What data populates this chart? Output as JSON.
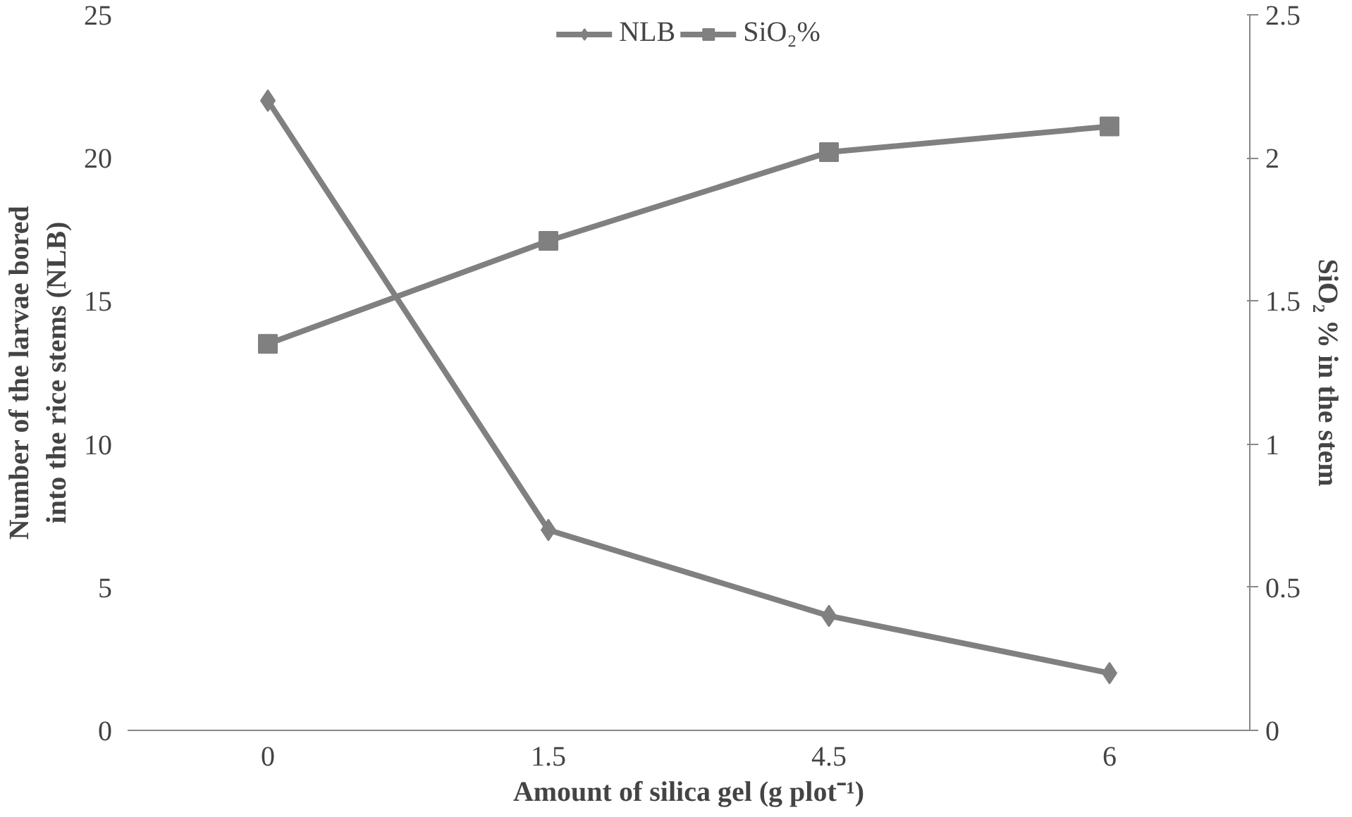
{
  "chart_data": {
    "type": "line",
    "categories": [
      "0",
      "1.5",
      "4.5",
      "6"
    ],
    "xlabel": "Amount of silica gel (g plot⁻¹)",
    "ylabel": "Number of the larvae bored\ninto the rice stems (NLB)",
    "y2label": "SiO₂ % in the stem",
    "series": [
      {
        "name": "NLB",
        "color": "#808080",
        "marker": "diamond",
        "values": [
          22,
          7,
          4,
          2
        ]
      },
      {
        "name": "SiO₂%",
        "color": "#808080",
        "marker": "square",
        "axis": "y2",
        "values": [
          1.35,
          1.71,
          2.02,
          2.11
        ]
      }
    ],
    "ylim": [
      0,
      25
    ],
    "yticks": [
      0,
      5,
      10,
      15,
      20,
      25
    ],
    "y2lim": [
      0,
      2.5
    ],
    "y2ticks": [
      0,
      0.5,
      1,
      1.5,
      2,
      2.5
    ],
    "legend": "top",
    "grid": false
  }
}
